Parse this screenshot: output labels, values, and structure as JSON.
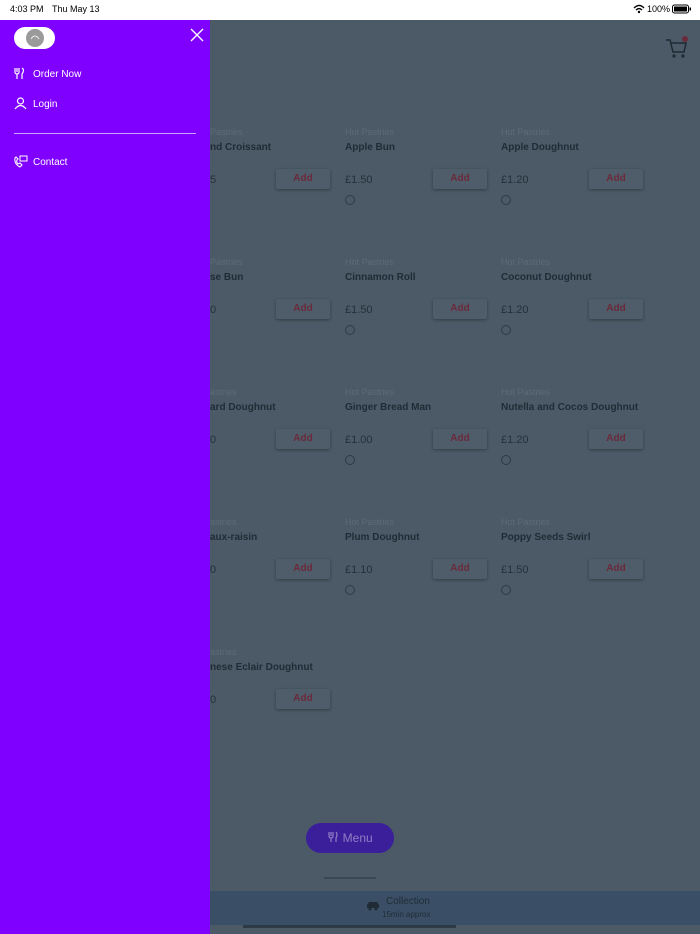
{
  "status_bar": {
    "time": "4:03 PM",
    "date": "Thu May 13",
    "battery": "100%"
  },
  "drawer": {
    "items": [
      "Order Now",
      "Login",
      "Contact"
    ]
  },
  "add_label": "Add",
  "products": [
    {
      "category": "Pastries",
      "name": "nd Croissant",
      "price": "5"
    },
    {
      "category": "Hot Pastries",
      "name": "Apple Bun",
      "price": "£1.50"
    },
    {
      "category": "Hot Pastries",
      "name": "Apple Doughnut",
      "price": "£1.20"
    },
    {
      "category": "Pastries",
      "name": "se Bun",
      "price": "0"
    },
    {
      "category": "Hot Pastries",
      "name": "Cinnamon Roll",
      "price": "£1.50"
    },
    {
      "category": "Hot Pastries",
      "name": "Coconut Doughnut",
      "price": "£1.20"
    },
    {
      "category": "astries",
      "name": "ard Doughnut",
      "price": "0"
    },
    {
      "category": "Hot Pastries",
      "name": "Ginger Bread Man",
      "price": "£1.00"
    },
    {
      "category": "Hot Pastries",
      "name": "Nutella and Cocos Doughnut",
      "price": "£1.20"
    },
    {
      "category": "astries",
      "name": "aux-raisin",
      "price": "0"
    },
    {
      "category": "Hot Pastries",
      "name": "Plum Doughnut",
      "price": "£1.10"
    },
    {
      "category": "Hot Pastries",
      "name": "Poppy Seeds Swirl",
      "price": "£1.50"
    },
    {
      "category": "astries",
      "name": "nese Eclair Doughnut",
      "price": "0"
    }
  ],
  "menu_button": "Menu",
  "footer": {
    "mode": "Collection",
    "time": "15min approx"
  }
}
